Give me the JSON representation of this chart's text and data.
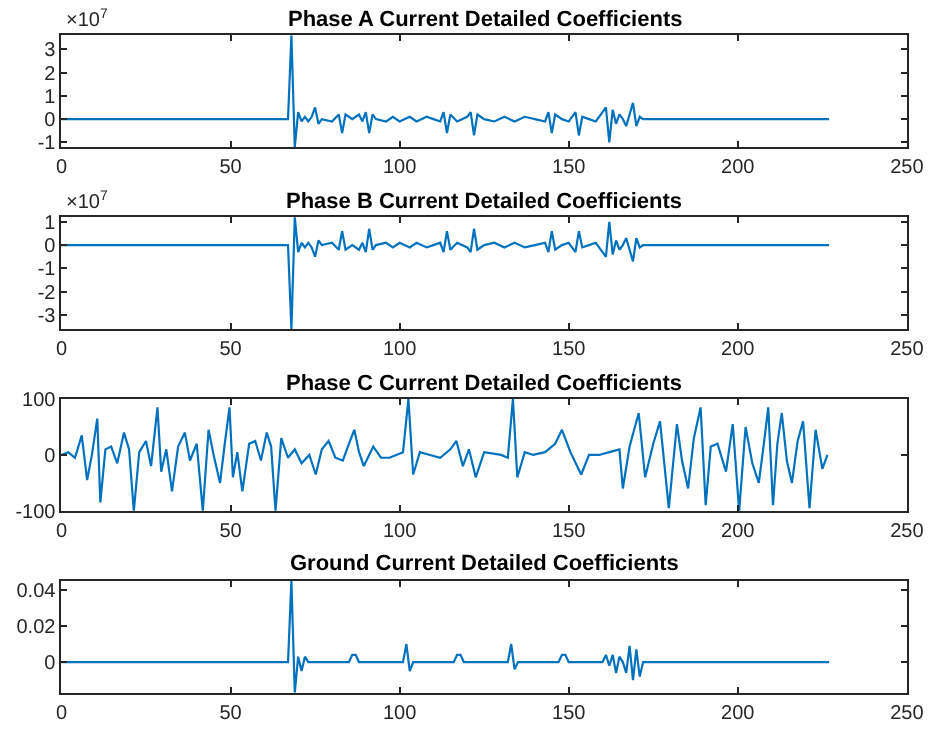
{
  "chart_data": [
    {
      "type": "line",
      "title": "Phase A Current Detailed Coefficients",
      "annotations": [
        "×10$^{7}$"
      ],
      "xlim": [
        0,
        250
      ],
      "xticks": [
        0,
        50,
        100,
        150,
        200,
        250
      ],
      "ylim": [
        -1.2,
        3.6
      ],
      "yticks": [
        -1,
        0,
        1,
        2,
        3
      ],
      "x": [
        0,
        66,
        67,
        68,
        69,
        70,
        71,
        72,
        73,
        74,
        75,
        76,
        77,
        80,
        82,
        83,
        84,
        86,
        88,
        89,
        90,
        91,
        92,
        93,
        96,
        98,
        100,
        103,
        105,
        108,
        110,
        112,
        113,
        114,
        115,
        117,
        120,
        121,
        122,
        123,
        125,
        128,
        131,
        134,
        137,
        140,
        143,
        144,
        145,
        146,
        148,
        150,
        152,
        153,
        154,
        156,
        158,
        160,
        161,
        162,
        163,
        164,
        165,
        166,
        167,
        168,
        169,
        170,
        171,
        172,
        227
      ],
      "series": [
        {
          "color": "#0072bd",
          "values": [
            0,
            0,
            0,
            3.6,
            -1.2,
            0.3,
            -0.1,
            0.1,
            -0.1,
            0.1,
            0.5,
            -0.2,
            0,
            -0.1,
            0.2,
            -0.6,
            0.2,
            0,
            0.2,
            -0.1,
            0.3,
            -0.6,
            0.2,
            0,
            -0.1,
            0.1,
            -0.1,
            0.1,
            -0.1,
            0.1,
            0,
            -0.1,
            0.3,
            -0.6,
            0.2,
            -0.1,
            0.1,
            0.3,
            -0.7,
            0.2,
            0,
            -0.1,
            0.1,
            -0.1,
            0.1,
            0,
            -0.1,
            0.3,
            -0.6,
            0.2,
            0,
            -0.1,
            0.3,
            -0.7,
            0.1,
            0,
            -0.1,
            0.3,
            0.5,
            -1.0,
            0.4,
            -0.2,
            0.2,
            0,
            -0.3,
            0.2,
            0.7,
            -0.3,
            0.1,
            0,
            0
          ]
        }
      ]
    },
    {
      "type": "line",
      "title": "Phase B Current Detailed Coefficients",
      "annotations": [
        "×10$^{7}$"
      ],
      "xlim": [
        0,
        250
      ],
      "xticks": [
        0,
        50,
        100,
        150,
        200,
        250
      ],
      "ylim": [
        -3.6,
        1.2
      ],
      "yticks": [
        -3,
        -2,
        -1,
        0,
        1
      ],
      "x": [
        0,
        66,
        67,
        68,
        69,
        70,
        71,
        72,
        73,
        74,
        75,
        76,
        77,
        80,
        82,
        83,
        84,
        86,
        88,
        89,
        90,
        91,
        92,
        93,
        96,
        98,
        100,
        103,
        105,
        108,
        110,
        112,
        113,
        114,
        115,
        117,
        120,
        121,
        122,
        123,
        125,
        128,
        131,
        134,
        137,
        140,
        143,
        144,
        145,
        146,
        148,
        150,
        152,
        153,
        154,
        156,
        158,
        160,
        161,
        162,
        163,
        164,
        165,
        166,
        167,
        168,
        169,
        170,
        171,
        172,
        227
      ],
      "series": [
        {
          "color": "#0072bd",
          "values": [
            0,
            0,
            0,
            -3.6,
            1.2,
            -0.3,
            0.1,
            -0.1,
            0.1,
            -0.1,
            -0.5,
            0.2,
            0,
            0.1,
            -0.2,
            0.6,
            -0.2,
            0,
            -0.2,
            0.1,
            -0.3,
            0.7,
            -0.2,
            0,
            0.1,
            -0.1,
            0.1,
            -0.1,
            0.1,
            -0.1,
            0,
            0.1,
            -0.3,
            0.6,
            -0.2,
            0.1,
            -0.1,
            -0.3,
            0.7,
            -0.2,
            0,
            0.1,
            -0.1,
            0.1,
            -0.1,
            0,
            0.1,
            -0.3,
            0.6,
            -0.2,
            0,
            0.1,
            -0.3,
            0.6,
            -0.1,
            0,
            0.1,
            -0.3,
            -0.5,
            1.0,
            -0.4,
            0.2,
            -0.2,
            0,
            0.3,
            -0.2,
            -0.7,
            0.3,
            -0.1,
            0,
            0
          ]
        }
      ]
    },
    {
      "type": "line",
      "title": "Phase C Current Detailed Coefficients",
      "xlim": [
        0,
        250
      ],
      "xticks": [
        0,
        50,
        100,
        150,
        200,
        250
      ],
      "ylim": [
        -100,
        100
      ],
      "yticks": [
        -100,
        0,
        100
      ],
      "x": [
        0,
        2,
        4,
        6,
        7.6,
        9,
        10.6,
        11.5,
        13,
        14.7,
        16.5,
        18.5,
        20,
        21.4,
        23,
        25,
        26.5,
        28.4,
        29.5,
        31,
        32.7,
        34.5,
        36.5,
        38,
        40,
        41.8,
        43.5,
        45,
        46.9,
        48.3,
        49.7,
        50.7,
        52,
        53.5,
        55.5,
        57.3,
        59,
        60.7,
        62,
        63.3,
        65,
        67,
        69,
        71,
        73.3,
        75.2,
        77,
        79,
        81,
        83.2,
        85,
        86.6,
        88,
        89.4,
        91,
        92.2,
        94.5,
        97,
        99,
        101,
        102.6,
        104,
        106,
        109,
        112,
        115,
        116.8,
        118.7,
        120.5,
        122.5,
        125,
        130,
        132,
        133.5,
        134.8,
        137,
        139.5,
        143,
        146,
        148,
        150.5,
        153.7,
        156,
        159,
        162,
        165,
        166,
        168,
        170.7,
        172.6,
        175,
        177,
        179.6,
        182,
        183.5,
        185.3,
        187,
        189,
        190.5,
        192,
        194,
        196.5,
        198.5,
        200.4,
        202.3,
        204.3,
        206.2,
        207.6,
        209,
        210.4,
        211.7,
        213,
        214.5,
        216,
        217.7,
        219.3,
        221.2,
        223,
        225,
        226.5
      ],
      "series": [
        {
          "color": "#0072bd",
          "values": [
            0,
            5,
            -5,
            35,
            -45,
            0,
            65,
            -85,
            10,
            15,
            -15,
            40,
            10,
            -100,
            5,
            25,
            -20,
            85,
            -30,
            10,
            -65,
            15,
            40,
            -10,
            20,
            -100,
            45,
            0,
            -50,
            20,
            85,
            -40,
            5,
            -65,
            20,
            25,
            -10,
            40,
            15,
            -100,
            30,
            -5,
            10,
            -15,
            0,
            -35,
            10,
            25,
            -5,
            -10,
            20,
            45,
            5,
            -20,
            0,
            15,
            -5,
            -5,
            0,
            5,
            100,
            -35,
            5,
            0,
            -5,
            10,
            25,
            -20,
            10,
            -40,
            5,
            0,
            -5,
            100,
            -40,
            5,
            0,
            5,
            20,
            45,
            5,
            -35,
            0,
            0,
            5,
            10,
            -60,
            15,
            75,
            -40,
            20,
            60,
            -95,
            55,
            -10,
            -60,
            30,
            85,
            -90,
            15,
            20,
            -30,
            55,
            -100,
            50,
            -15,
            -50,
            15,
            85,
            -90,
            20,
            75,
            -10,
            -50,
            25,
            60,
            -95,
            45,
            -25,
            0
          ]
        }
      ]
    },
    {
      "type": "line",
      "title": "Ground Current Detailed Coefficients",
      "xlim": [
        0,
        250
      ],
      "xticks": [
        0,
        50,
        100,
        150,
        200,
        250
      ],
      "ylim": [
        -0.017,
        0.045
      ],
      "yticks": [
        0,
        0.02,
        0.04
      ],
      "x": [
        0,
        66,
        67,
        68,
        69,
        70,
        71,
        72,
        73,
        85,
        86,
        87,
        88,
        101,
        102,
        103,
        104,
        116,
        117,
        118,
        119,
        132,
        133,
        134,
        135,
        147,
        148,
        149,
        150,
        160,
        161,
        162,
        163,
        164,
        165,
        166,
        167,
        168,
        169,
        170,
        171,
        172,
        227
      ],
      "series": [
        {
          "color": "#0072bd",
          "values": [
            0,
            0,
            0,
            0.045,
            -0.017,
            0.003,
            -0.005,
            0.003,
            0,
            0,
            0.004,
            0.004,
            0,
            0,
            0.01,
            -0.005,
            0,
            0,
            0.004,
            0.004,
            0,
            0,
            0.01,
            -0.004,
            0,
            0,
            0.004,
            0.004,
            0,
            0,
            0.004,
            -0.002,
            0.004,
            -0.006,
            0.003,
            0,
            -0.006,
            0.009,
            -0.01,
            0.007,
            -0.008,
            0,
            0
          ]
        }
      ]
    }
  ]
}
